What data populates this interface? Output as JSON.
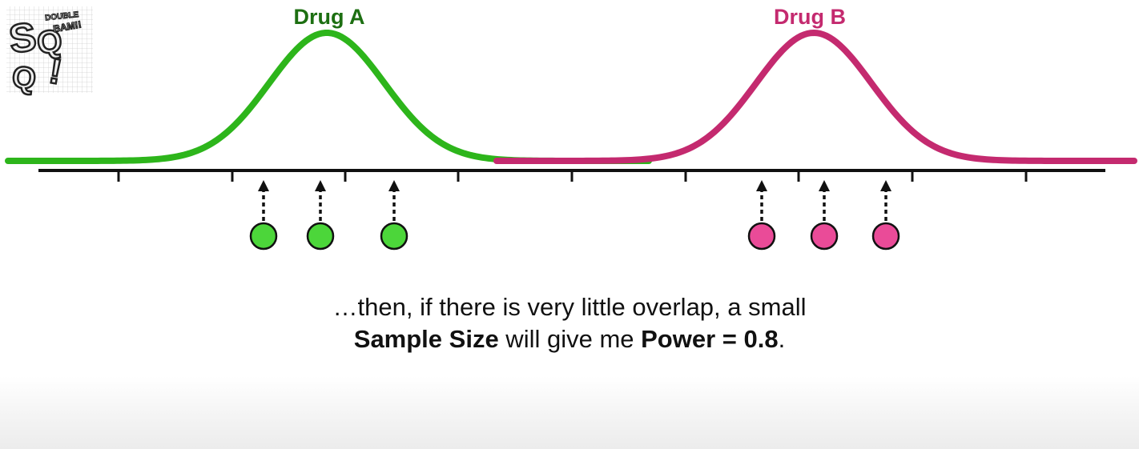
{
  "logo": {
    "text": "StatQuest",
    "badge": "DOUBLE BAM!!"
  },
  "colors": {
    "drug_a_curve": "#2db51b",
    "drug_a_label": "#1d6f12",
    "drug_a_point": "#4cd63a",
    "drug_b_curve": "#c42a6f",
    "drug_b_label": "#c42a6f",
    "drug_b_point": "#ea4b98",
    "axis": "#111111"
  },
  "distributions": [
    {
      "name": "Drug A",
      "icon": "normal-curve",
      "points": 3
    },
    {
      "name": "Drug B",
      "icon": "normal-curve",
      "points": 3
    }
  ],
  "caption": {
    "line1": "…then, if there is very little overlap, a small",
    "line2_bold1": "Sample Size",
    "line2_mid": " will give me ",
    "line2_bold2": "Power = 0.8",
    "line2_end": "."
  }
}
